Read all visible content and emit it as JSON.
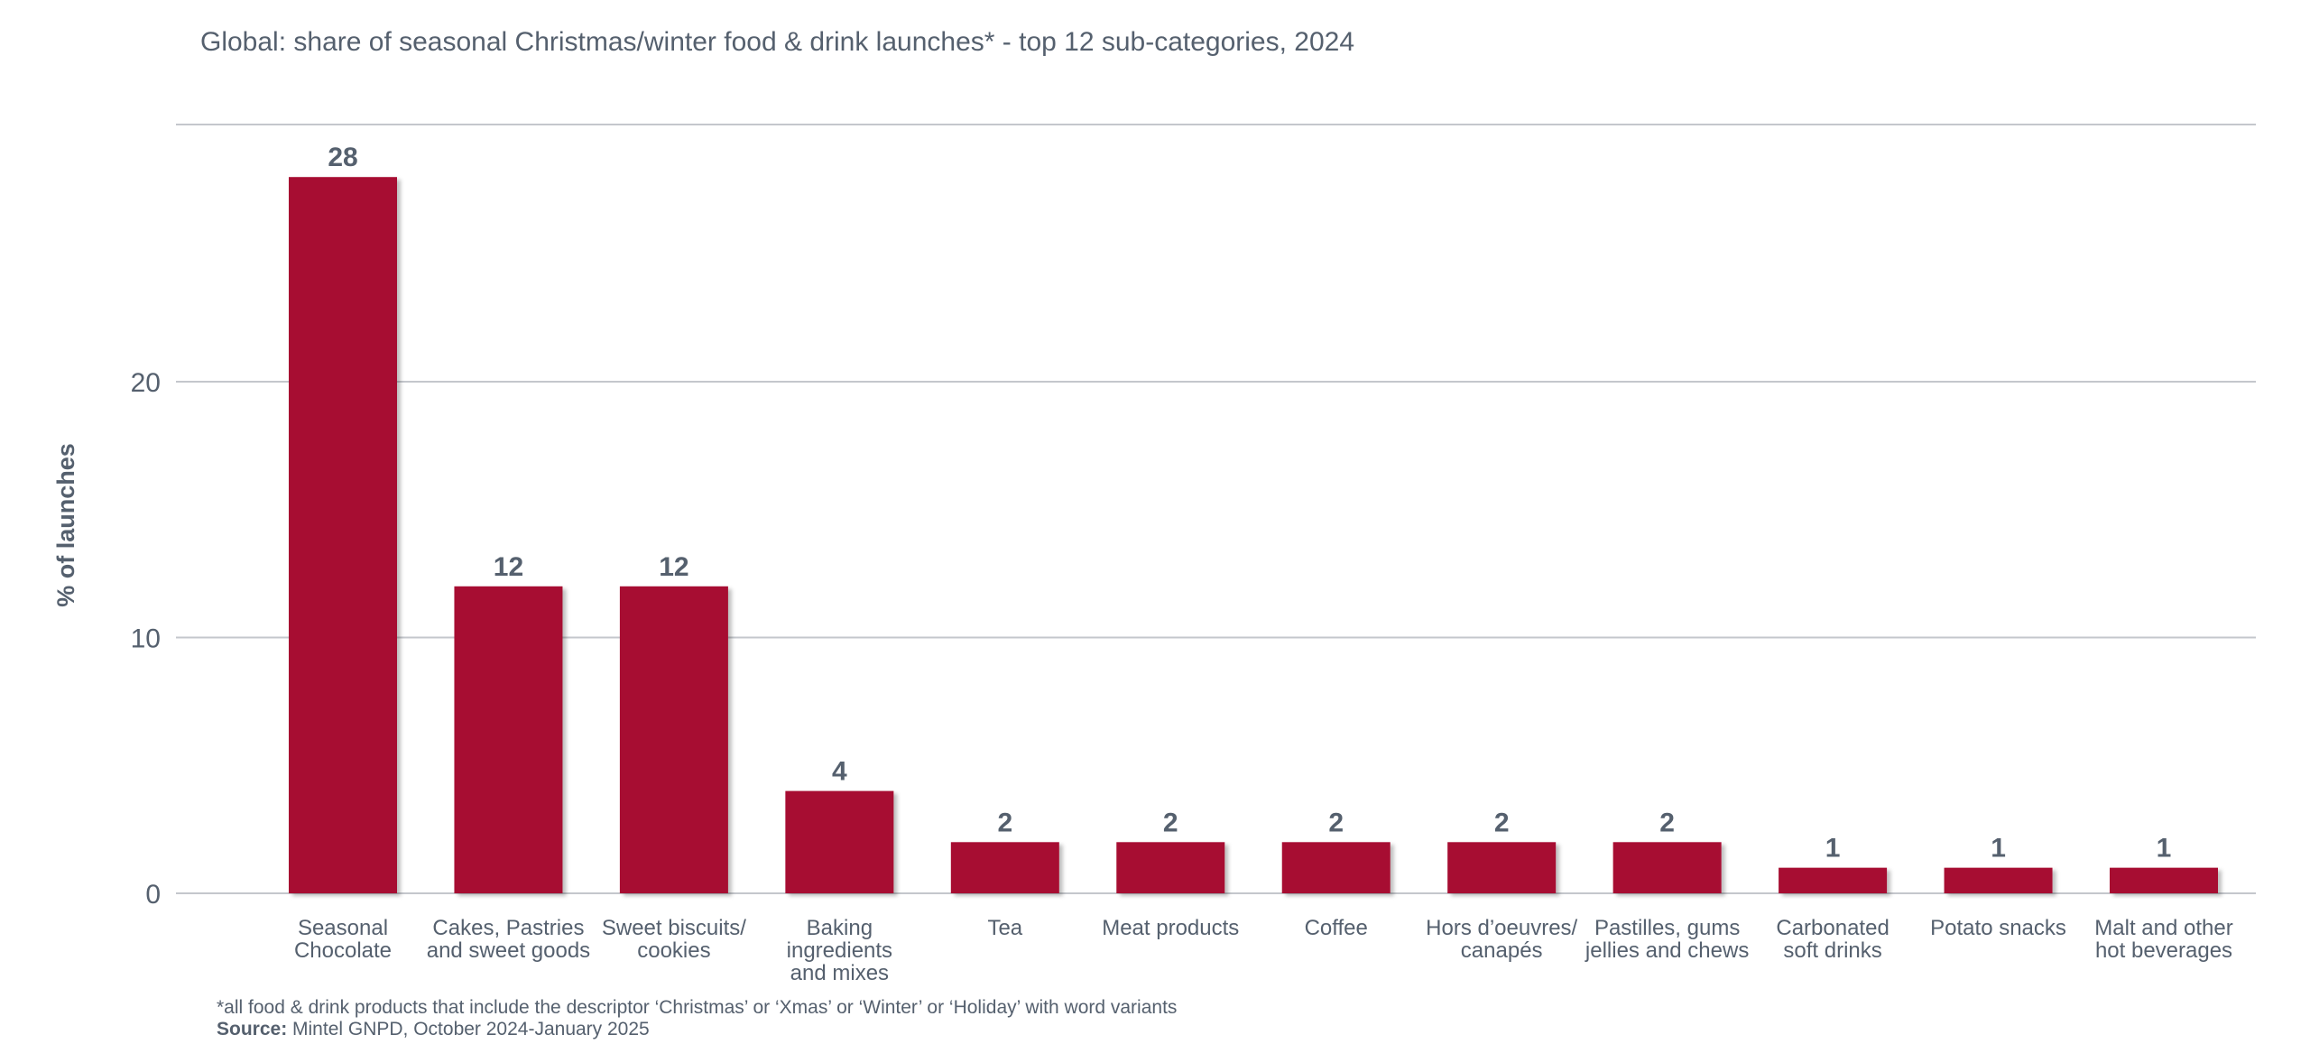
{
  "chart_data": {
    "type": "bar",
    "title": "Global: share of seasonal Christmas/winter food & drink launches* - top 12 sub-categories, 2024",
    "ylabel": "% of launches",
    "xlabel": "",
    "ylim": [
      0,
      30
    ],
    "yticks": [
      0,
      10,
      20
    ],
    "grid": true,
    "categories": [
      [
        "Seasonal",
        "Chocolate"
      ],
      [
        "Cakes, Pastries",
        "and sweet goods"
      ],
      [
        "Sweet biscuits/",
        "cookies"
      ],
      [
        "Baking",
        "ingredients",
        "and mixes"
      ],
      [
        "Tea"
      ],
      [
        "Meat products"
      ],
      [
        "Coffee"
      ],
      [
        "Hors d’oeuvres/",
        "canapés"
      ],
      [
        "Pastilles, gums",
        "jellies and chews"
      ],
      [
        "Carbonated",
        "soft drinks"
      ],
      [
        "Potato snacks"
      ],
      [
        "Malt and other",
        "hot beverages"
      ]
    ],
    "values": [
      28,
      12,
      12,
      4,
      2,
      2,
      2,
      2,
      2,
      1,
      1,
      1
    ],
    "colors": {
      "bar": "#a71130",
      "text": "#55606e",
      "grid": "#c4c7cc"
    }
  },
  "footnote": "*all food & drink products that include the descriptor ‘Christmas’ or ‘Xmas’ or ‘Winter’ or ‘Holiday’ with word variants",
  "source": {
    "label": "Source:",
    "text": " Mintel GNPD, October 2024-January 2025"
  }
}
